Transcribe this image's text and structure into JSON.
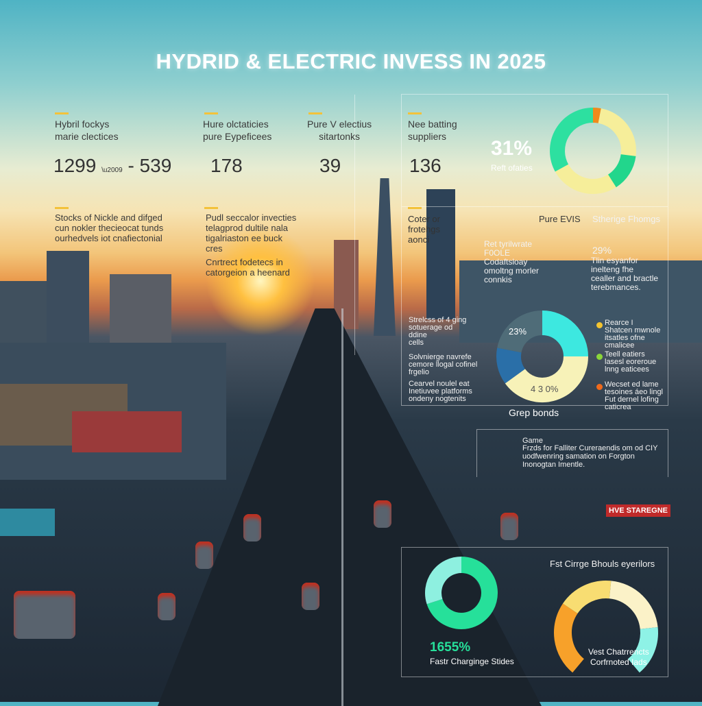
{
  "title": "HYDRID & ELECTRIC INVESS IN 2025",
  "top_stats": [
    {
      "label": "Hybril fockys\nmarie clectices",
      "value": "1299",
      "value_sep": "      ",
      "value2": "- 539"
    },
    {
      "label": "Hure olctaticies\npure Eypeficees",
      "value": "178"
    },
    {
      "label": "Pure V electius\nsitartonks",
      "value": "39"
    },
    {
      "label": "Nee batting\nsuppliers",
      "value": "136"
    }
  ],
  "notes": {
    "nickel": "Stocks of Nickle and difged\ncun nokler thecieocat tunds\nourhedvels iot cnafiectonial",
    "pudl": "Pudl seccalor invecties\ntelagprod dultile nala\ntigalriaston ee buck\ncres",
    "contract": "Cnrtrect fodetecs in\ncatorgeion a heenard",
    "cotenor": "Coter or\nfrotehgs\naonci"
  },
  "share_donut": {
    "value": "31%",
    "caption": "Reft ofaties",
    "segments": [
      {
        "value": 3,
        "color": "#f08a1c"
      },
      {
        "value": 24,
        "color": "#f6ee9a"
      },
      {
        "value": 14,
        "color": "#22d68c"
      },
      {
        "value": 26,
        "color": "#f6ee9a"
      },
      {
        "value": 33,
        "color": "#2de0a0"
      }
    ]
  },
  "pure_evs": {
    "heading": "Pure EVIS",
    "text": "Ret tyrilwrate\nF0OLE\nCodaftsloay\nomoltng morler\nconnkis"
  },
  "stherge": {
    "heading": "Stherige Fhomgs",
    "value": "29%",
    "text": "Tlin esyanfor\ninelteng fhe\ncealler and bractle\nterebmances."
  },
  "left_mid": [
    "Strelcss of 4 ging\nsotuerage od\nddine\ncells",
    "Solvnierge navrefe\ncemore llogal cofinel\nfrgelio",
    "Cearvel noulel eat\nInetiuvee platforms\nondeny nogtenits"
  ],
  "bond_donut": {
    "label_a": "23%",
    "label_b": "4 3 0%",
    "caption": "Grep bonds",
    "segments": [
      {
        "value": 25,
        "color": "#3de8e0"
      },
      {
        "value": 40,
        "color": "#f7f2b8"
      },
      {
        "value": 13,
        "color": "#2a6fa8"
      },
      {
        "value": 22,
        "color": "#4f6c78"
      }
    ]
  },
  "legend": [
    {
      "color": "#f4c430",
      "text": "Rearce I\nShatcen mwnole\nitsatles ofne\ncmalicee"
    },
    {
      "color": "#8bd63a",
      "text": "Teell eatiers\nlasesl eoreroue\nlnng eaticees"
    },
    {
      "color": "#f06a1c",
      "text": "Wecset ed lame\ntesoines áeo lingl\nFut dernel lofing\ncaticrea"
    }
  ],
  "game": {
    "heading": "Game",
    "text": "Frzds for Falliter Cureraendis om od CIY\nuodfwenring samation on Forgton\nInonogtan Imentle."
  },
  "sign": "HVE STAREGNE",
  "bottom": {
    "heading": "Fst Cirrge Bhouls eyerilors",
    "ring": {
      "value": "1655%",
      "caption": "Fastr Charginge Stides",
      "segments": [
        {
          "value": 70,
          "color": "#26e09a"
        },
        {
          "value": 30,
          "color": "#8ef0e0"
        }
      ]
    },
    "gauge": {
      "caption": "Vest Chatrrencts\nCorfrnoted Iads",
      "segments": [
        {
          "value": 30,
          "color": "#f7a12a"
        },
        {
          "value": 22,
          "color": "#f8dd72"
        },
        {
          "value": 28,
          "color": "#fbf2c8"
        },
        {
          "value": 20,
          "color": "#8ef2e6"
        }
      ]
    }
  }
}
